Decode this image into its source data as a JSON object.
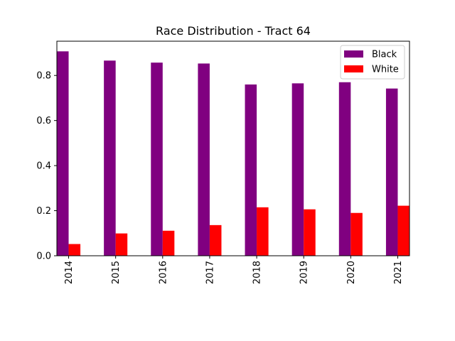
{
  "chart_data": {
    "type": "bar",
    "title": "Race Distribution - Tract 64",
    "xlabel": "",
    "ylabel": "",
    "categories": [
      "2014",
      "2015",
      "2016",
      "2017",
      "2018",
      "2019",
      "2020",
      "2021"
    ],
    "series": [
      {
        "name": "Black",
        "color": "#800080",
        "values": [
          0.907,
          0.866,
          0.857,
          0.853,
          0.76,
          0.765,
          0.77,
          0.742
        ]
      },
      {
        "name": "White",
        "color": "#ff0000",
        "values": [
          0.052,
          0.099,
          0.111,
          0.136,
          0.215,
          0.206,
          0.19,
          0.222
        ]
      }
    ],
    "ylim": [
      0,
      0.952
    ],
    "yticks": [
      0.0,
      0.2,
      0.4,
      0.6,
      0.8
    ],
    "ytick_labels": [
      "0.0",
      "0.2",
      "0.4",
      "0.6",
      "0.8"
    ],
    "x_tick_rotation": "vertical",
    "grid": false,
    "legend_placement": "top-right"
  }
}
